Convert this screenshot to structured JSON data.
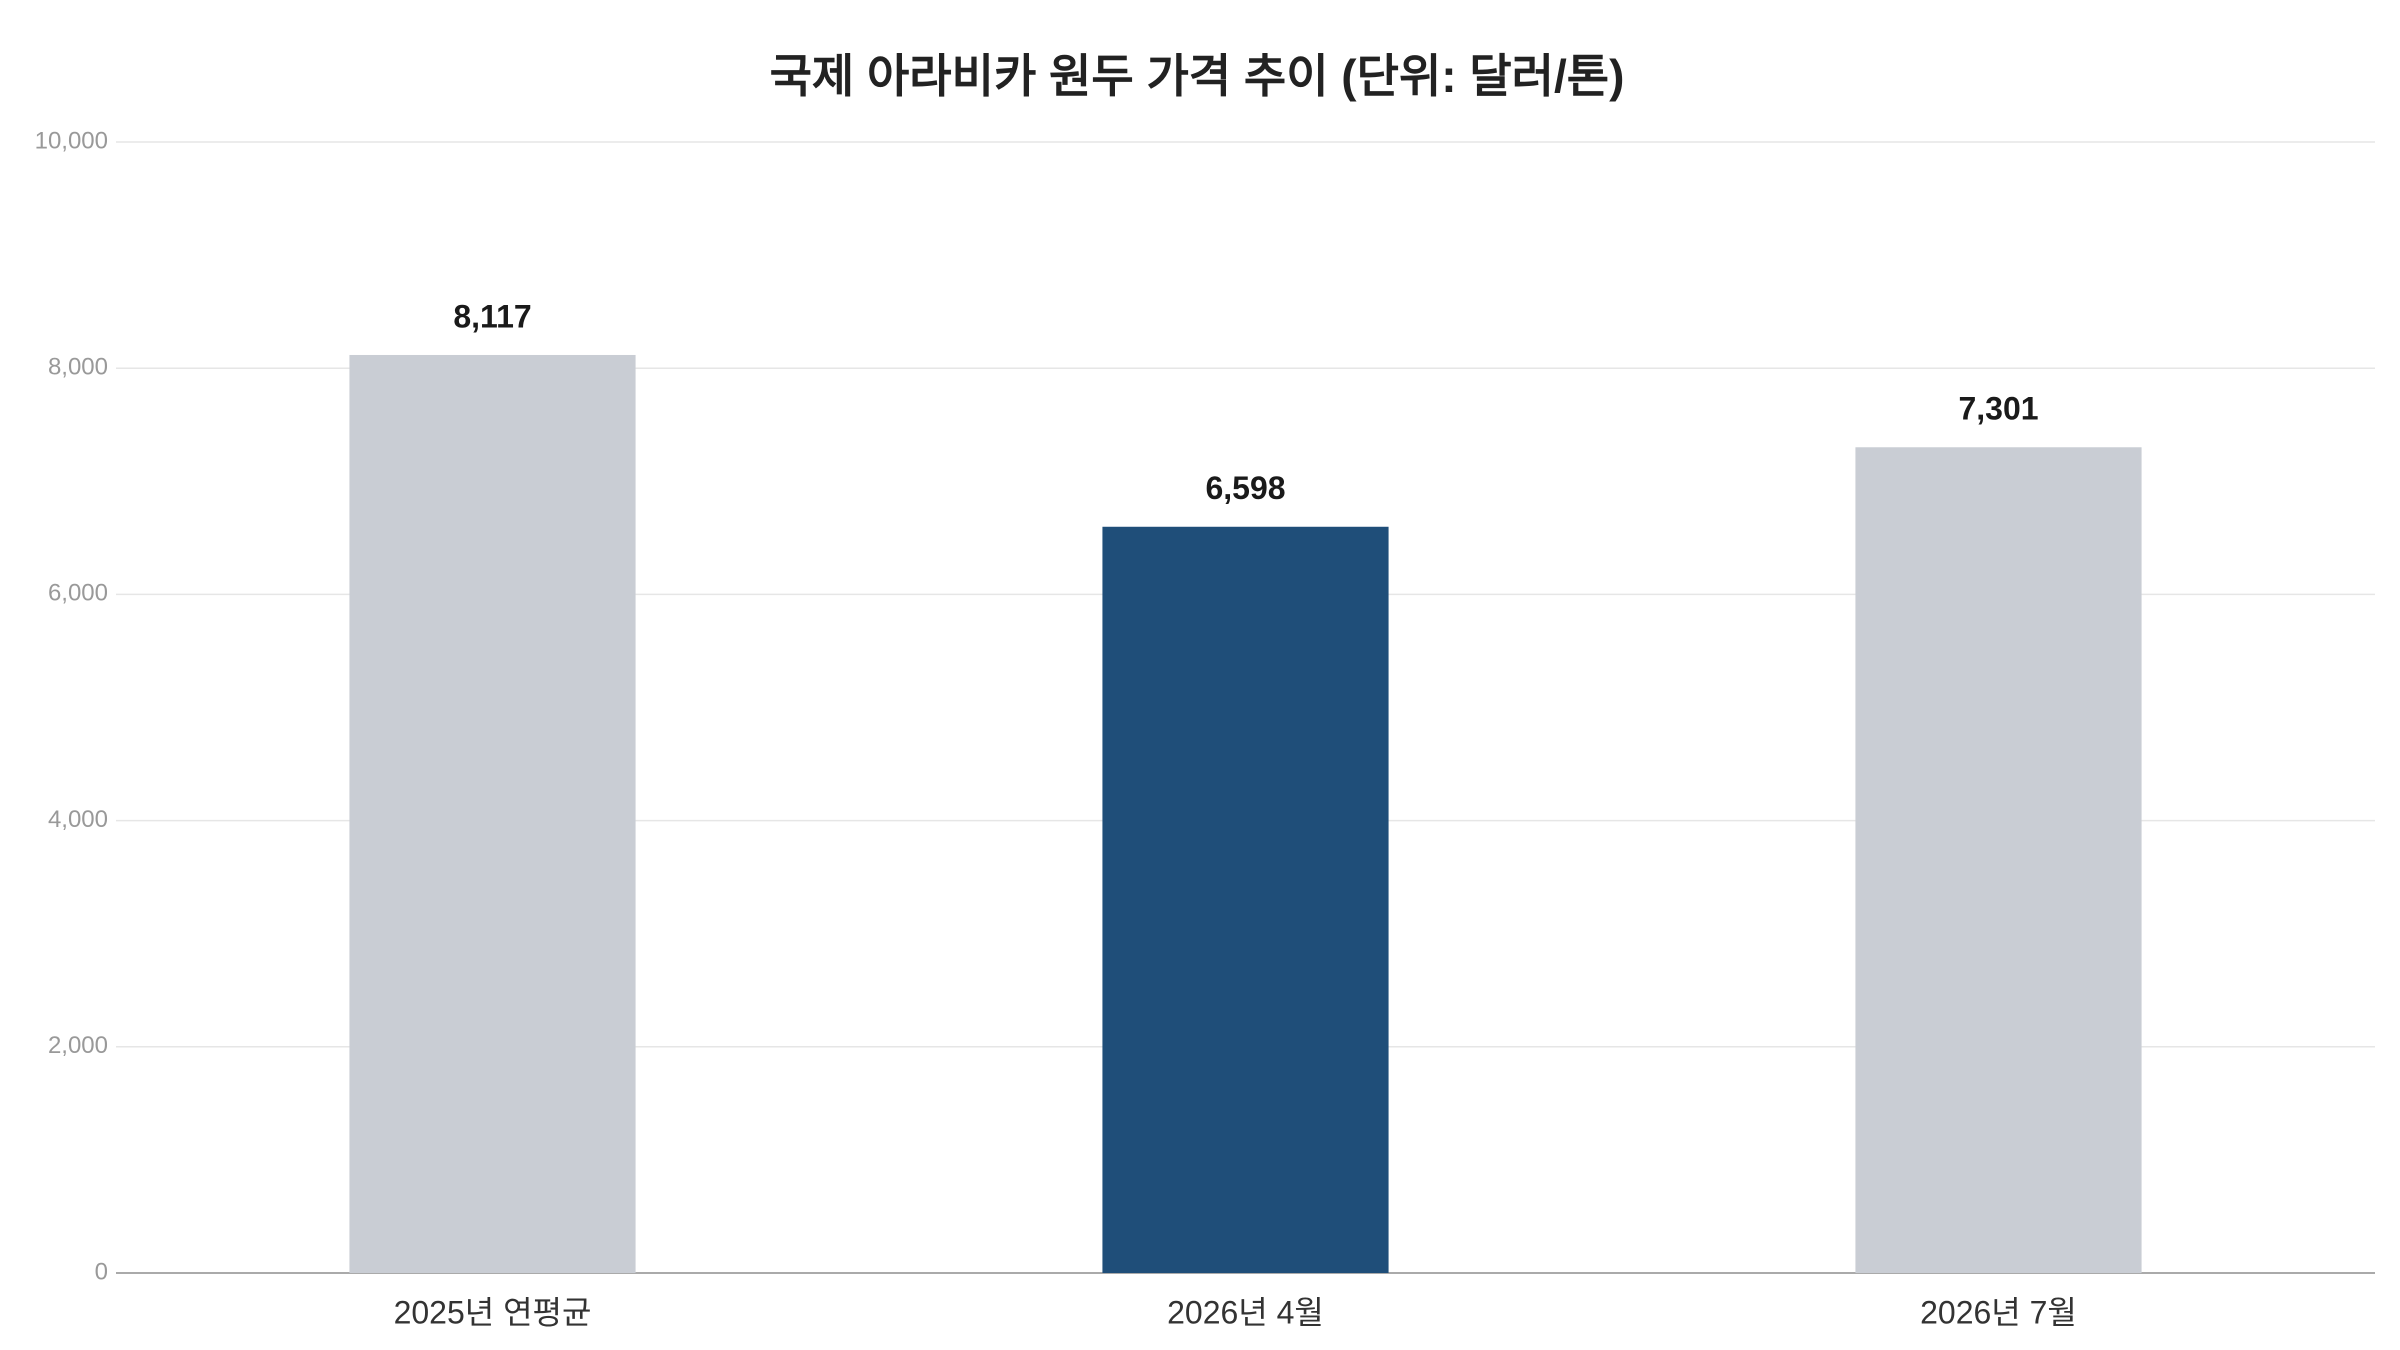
{
  "chart_data": {
    "type": "bar",
    "title": "국제 아라비카 원두 가격 추이 (단위: 달러/톤)",
    "categories": [
      "2025년 연평균",
      "2026년 4월",
      "2026년 7월"
    ],
    "values": [
      8117,
      6598,
      7301
    ],
    "value_labels": [
      "8,117",
      "6,598",
      "7,301"
    ],
    "colors": [
      "#c9cdd4",
      "#1f4e79",
      "#c9cdd4"
    ],
    "ylim": [
      0,
      10000
    ],
    "yticks": [
      0,
      {
        "value": 2000,
        "label": "2,000"
      },
      {
        "value": 4000,
        "label": "4,000"
      },
      {
        "value": 6000,
        "label": "6,000"
      },
      {
        "value": 8000,
        "label": "8,000"
      },
      {
        "value": 10000,
        "label": "10,000"
      }
    ],
    "grid": true
  }
}
